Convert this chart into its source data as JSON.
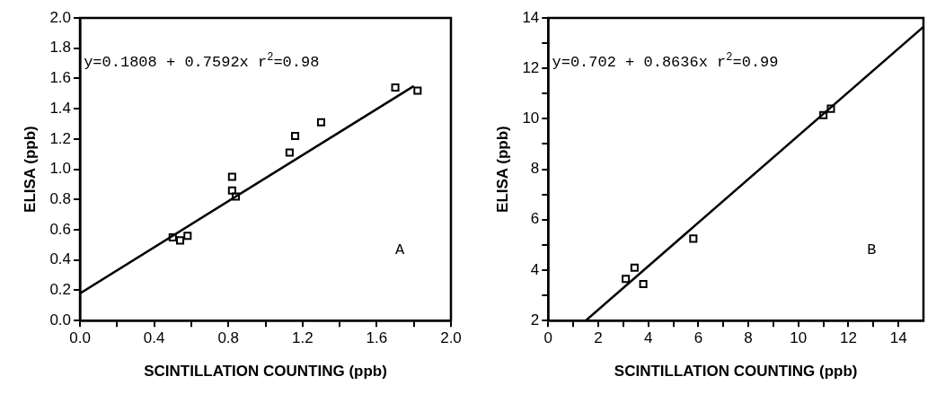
{
  "chart_data": [
    {
      "type": "scatter",
      "xlabel": "SCINTILLATION COUNTING (ppb)",
      "ylabel": "ELISA (ppb)",
      "annotations": [
        "y=0.1808 + 0.7592x r$^{2}$=0.98",
        "A"
      ],
      "series": [
        {
          "type": "scatter",
          "color": "#000000",
          "marker": "square",
          "x": [
            0.5,
            0.54,
            0.58,
            0.82,
            0.82,
            0.84,
            1.13,
            1.16,
            1.3,
            1.7,
            1.82
          ],
          "values": [
            0.55,
            0.53,
            0.56,
            0.95,
            0.86,
            0.82,
            1.11,
            1.22,
            1.31,
            1.54,
            1.52
          ]
        },
        {
          "type": "line",
          "color": "#000000",
          "line_style": "solid",
          "marker": "none",
          "x": [
            0,
            1.8
          ],
          "values": [
            0.18,
            1.55
          ]
        }
      ],
      "xlim": [
        0,
        2
      ],
      "ylim": [
        0,
        2
      ],
      "xticks": [
        {
          "value": 0,
          "label": "0.0"
        },
        {
          "value": 0.2,
          "label": null
        },
        {
          "value": 0.4,
          "label": "0.4"
        },
        {
          "value": 0.6,
          "label": null
        },
        {
          "value": 0.8,
          "label": "0.8"
        },
        {
          "value": 1,
          "label": null
        },
        {
          "value": 1.2,
          "label": "1.2"
        },
        {
          "value": 1.4,
          "label": null
        },
        {
          "value": 1.6,
          "label": "1.6"
        },
        {
          "value": 1.8,
          "label": null
        },
        {
          "value": 2,
          "label": "2.0"
        }
      ],
      "yticks": [
        {
          "value": 0,
          "label": "0.0"
        },
        {
          "value": 0.2,
          "label": "0.2"
        },
        {
          "value": 0.4,
          "label": "0.4"
        },
        {
          "value": 0.6,
          "label": "0.6"
        },
        {
          "value": 0.8,
          "label": "0.8"
        },
        {
          "value": 1,
          "label": "1.0"
        },
        {
          "value": 1.2,
          "label": "1.2"
        },
        {
          "value": 1.4,
          "label": "1.4"
        },
        {
          "value": 1.6,
          "label": "1.6"
        },
        {
          "value": 1.8,
          "label": "1.8"
        },
        {
          "value": 2,
          "label": "2.0"
        }
      ],
      "grid": false,
      "legend": false
    },
    {
      "type": "scatter",
      "xlabel": "SCINTILLATION COUNTING (ppb)",
      "ylabel": "ELISA (ppb)",
      "annotations": [
        "y=0.702 + 0.8636x r$^{2}$=0.99",
        "B"
      ],
      "series": [
        {
          "type": "scatter",
          "color": "#000000",
          "marker": "square",
          "x": [
            3.1,
            3.45,
            3.8,
            5.8,
            11.0,
            11.3
          ],
          "values": [
            3.65,
            4.1,
            3.45,
            5.25,
            10.15,
            10.4
          ]
        },
        {
          "type": "line",
          "color": "#000000",
          "line_style": "solid",
          "marker": "none",
          "x": [
            1.5,
            15
          ],
          "values": [
            2,
            13.65
          ]
        }
      ],
      "xlim": [
        0,
        15
      ],
      "ylim": [
        2,
        14
      ],
      "xticks": [
        0,
        {
          "value": 1,
          "label": null
        },
        2,
        {
          "value": 3,
          "label": null
        },
        4,
        {
          "value": 5,
          "label": null
        },
        6,
        {
          "value": 7,
          "label": null
        },
        8,
        {
          "value": 9,
          "label": null
        },
        10,
        {
          "value": 11,
          "label": null
        },
        12,
        {
          "value": 13,
          "label": null
        },
        14
      ],
      "yticks": [
        2,
        {
          "value": 3,
          "label": null
        },
        4,
        {
          "value": 5,
          "label": null
        },
        6,
        {
          "value": 7,
          "label": null
        },
        8,
        {
          "value": 9,
          "label": null
        },
        10,
        {
          "value": 11,
          "label": null
        },
        12,
        {
          "value": 13,
          "label": null
        },
        14
      ],
      "grid": false,
      "legend": false
    }
  ]
}
